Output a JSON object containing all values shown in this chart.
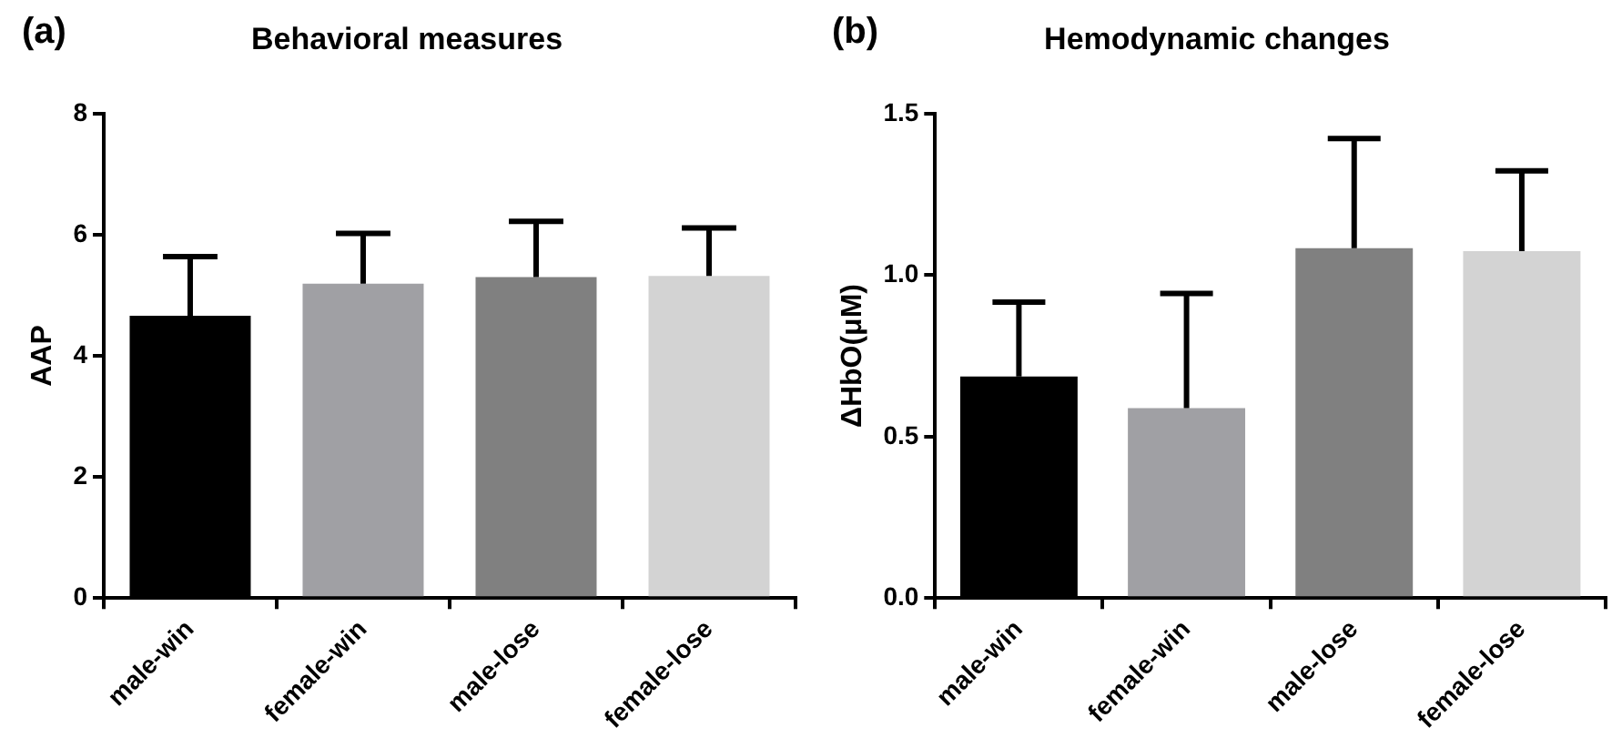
{
  "chart_data": [
    {
      "type": "bar",
      "title": "Behavioral measures",
      "ylabel": "AAP",
      "annotations": [
        "(a)"
      ],
      "categories": [
        "male-win",
        "female-win",
        "male-lose",
        "female-lose"
      ],
      "values": [
        4.66,
        5.19,
        5.3,
        5.32
      ],
      "errors": [
        [
          4.66,
          5.64
        ],
        [
          5.19,
          6.02
        ],
        [
          5.3,
          6.22
        ],
        [
          5.32,
          6.11
        ]
      ],
      "colors": [
        "#000000",
        "#a0a0a4",
        "#808080",
        "#d3d3d3"
      ],
      "ylim": [
        0,
        8
      ],
      "yticks": [
        0,
        2,
        4,
        6,
        8
      ],
      "grid": false,
      "legend": false
    },
    {
      "type": "bar",
      "title": "Hemodynamic changes",
      "ylabel": "ΔHbO(μM)",
      "annotations": [
        "(b)"
      ],
      "categories": [
        "male-win",
        "female-win",
        "male-lose",
        "female-lose"
      ],
      "values": [
        0.686,
        0.588,
        1.083,
        1.074
      ],
      "errors": [
        [
          0.686,
          0.916
        ],
        [
          0.588,
          0.943
        ],
        [
          1.083,
          1.423
        ],
        [
          1.074,
          1.323
        ]
      ],
      "colors": [
        "#000000",
        "#a0a0a4",
        "#808080",
        "#d3d3d3"
      ],
      "ylim": [
        0,
        1.5
      ],
      "yticks": [
        {
          "value": 0,
          "label": "0.0"
        },
        {
          "value": 0.5,
          "label": "0.5"
        },
        {
          "value": 1,
          "label": "1.0"
        },
        {
          "value": 1.5,
          "label": "1.5"
        }
      ],
      "grid": false,
      "legend": false
    }
  ]
}
